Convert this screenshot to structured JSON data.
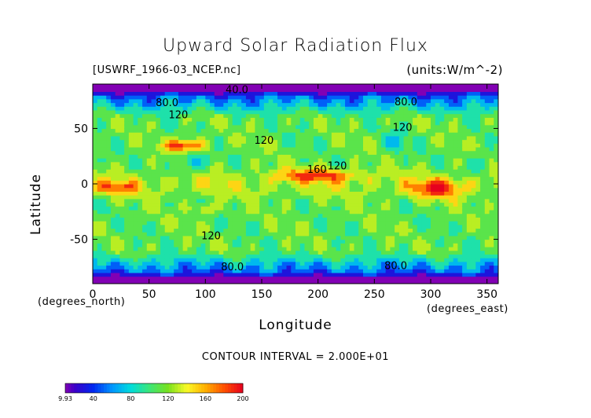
{
  "chart_data": {
    "type": "heatmap",
    "title": "Upward Solar Radiation Flux",
    "subtitle_left": "[USWRF_1966-03_NCEP.nc]",
    "subtitle_right": "(units:W/m^-2)",
    "xlabel": "Longitude",
    "ylabel": "Latitude",
    "x_units_label": "(degrees_east)",
    "y_units_label": "(degrees_north)",
    "xlim": [
      0,
      360
    ],
    "ylim": [
      -90,
      90
    ],
    "x_ticks": [
      0,
      50,
      100,
      150,
      200,
      250,
      300,
      350
    ],
    "y_ticks": [
      -50,
      0,
      50
    ],
    "contour_interval_text": "CONTOUR INTERVAL = 2.000E+01",
    "contour_labels": [
      {
        "text": "40.0",
        "lon": 128,
        "lat": 82
      },
      {
        "text": "80.0",
        "lon": 66,
        "lat": 70
      },
      {
        "text": "120",
        "lon": 76,
        "lat": 59
      },
      {
        "text": "80.0",
        "lon": 278,
        "lat": 71
      },
      {
        "text": "120",
        "lon": 275,
        "lat": 48
      },
      {
        "text": "120",
        "lon": 152,
        "lat": 36
      },
      {
        "text": "160",
        "lon": 199,
        "lat": 10
      },
      {
        "text": "120",
        "lon": 217,
        "lat": 13
      },
      {
        "text": "120",
        "lon": 105,
        "lat": -50
      },
      {
        "text": "80.0",
        "lon": 124,
        "lat": -78
      },
      {
        "text": "80.0",
        "lon": 269,
        "lat": -77
      }
    ],
    "regions": [
      {
        "name": "High-flux cloud band near 60-100E, 30-40N",
        "value_range": [
          160,
          200
        ]
      },
      {
        "name": "Equatorial maximum near 180-240E",
        "value_range": [
          160,
          200
        ]
      },
      {
        "name": "Maximum near 290-320E, 0 to -10",
        "value_range": [
          160,
          200
        ]
      },
      {
        "name": "Maximum near 10-40E, -5 to -10",
        "value_range": [
          160,
          200
        ]
      },
      {
        "name": "Polar bands",
        "value_range": [
          9.93,
          60
        ]
      }
    ],
    "colorbar": {
      "min": 9.93,
      "max": 200,
      "tick_labels": [
        "9.93",
        "40",
        "80",
        "120",
        "160",
        "200"
      ],
      "tick_values": [
        9.93,
        40,
        80,
        120,
        160,
        200
      ]
    }
  }
}
